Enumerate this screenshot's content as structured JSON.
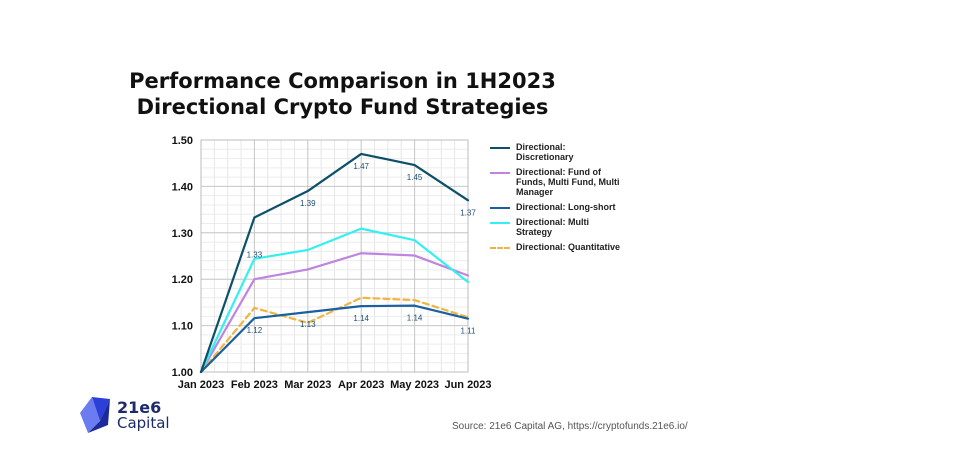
{
  "chart_data": {
    "type": "line",
    "title": [
      "Performance Comparison in 1H2023",
      "Directional Crypto Fund Strategies"
    ],
    "categories": [
      "Jan 2023",
      "Feb 2023",
      "Mar 2023",
      "Apr 2023",
      "May 2023",
      "Jun 2023"
    ],
    "ylim": [
      1.0,
      1.5
    ],
    "yticks": [
      "1.00",
      "1.10",
      "1.20",
      "1.30",
      "1.40",
      "1.50"
    ],
    "grid": true,
    "legend_position": "right",
    "series": [
      {
        "name": "Directional: Discretionary",
        "color": "#0d5069",
        "dashed": false,
        "values": [
          1.0,
          1.333,
          1.39,
          1.47,
          1.446,
          1.37
        ],
        "labels": [
          "",
          "1.33",
          "1.39",
          "1.47",
          "1.45",
          "1.37"
        ]
      },
      {
        "name": "Directional: Fund of Funds, Multi Fund, Multi Manager",
        "color": "#c084e0",
        "dashed": false,
        "values": [
          1.0,
          1.2,
          1.221,
          1.256,
          1.251,
          1.208
        ],
        "labels": []
      },
      {
        "name": "Directional: Long-short",
        "color": "#1a5fa0",
        "dashed": false,
        "values": [
          1.0,
          1.116,
          1.129,
          1.142,
          1.143,
          1.115
        ],
        "labels": [
          "",
          "1.12",
          "1.13",
          "1.14",
          "1.14",
          "1.11"
        ]
      },
      {
        "name": "Directional: Multi Strategy",
        "color": "#33f0f0",
        "dashed": false,
        "values": [
          1.0,
          1.244,
          1.263,
          1.309,
          1.284,
          1.194
        ],
        "labels": []
      },
      {
        "name": "Directional: Quantitative",
        "color": "#f0b440",
        "dashed": true,
        "values": [
          1.0,
          1.138,
          1.106,
          1.16,
          1.155,
          1.118
        ],
        "labels": []
      }
    ]
  },
  "legend": {
    "items": [
      {
        "lines": [
          "Directional:",
          "Discretionary"
        ],
        "color": "#0d5069",
        "dashed": false
      },
      {
        "lines": [
          "Directional: Fund of",
          "Funds, Multi Fund, Multi",
          "Manager"
        ],
        "color": "#c084e0",
        "dashed": false
      },
      {
        "lines": [
          "Directional: Long-short"
        ],
        "color": "#1a5fa0",
        "dashed": false
      },
      {
        "lines": [
          "Directional: Multi",
          "Strategy"
        ],
        "color": "#33f0f0",
        "dashed": false
      },
      {
        "lines": [
          "Directional: Quantitative"
        ],
        "color": "#f0b440",
        "dashed": true
      }
    ]
  },
  "logo": {
    "line1": "21e6",
    "line2": "Capital"
  },
  "source": "Source: 21e6 Capital AG, https://cryptofunds.21e6.io/"
}
